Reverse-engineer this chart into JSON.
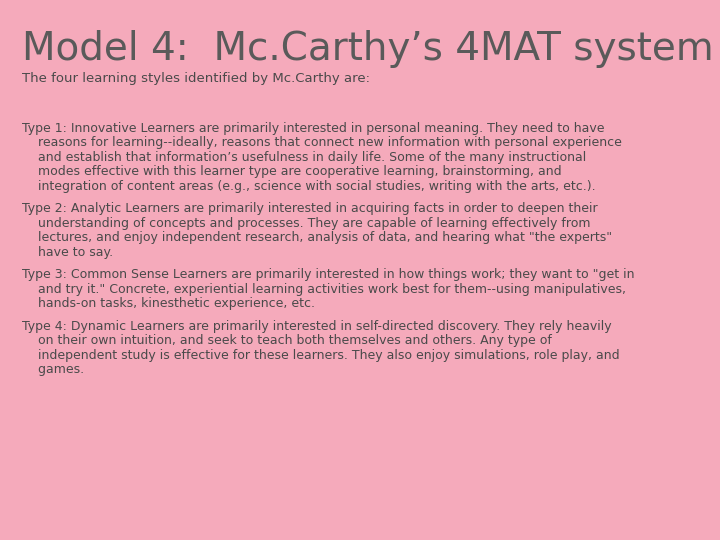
{
  "background_color": "#F5AABB",
  "title": "Model 4:  Mc.Carthy’s 4MAT system",
  "title_color": "#5a5a5a",
  "title_fontsize": 28,
  "subtitle": "The four learning styles identified by Mc.Carthy are:",
  "subtitle_color": "#4a4a4a",
  "subtitle_fontsize": 9.5,
  "text_color": "#4a4a4a",
  "body_fontsize": 9.0,
  "font_family": "Comic Sans MS",
  "paragraphs": [
    {
      "lines": [
        "Type 1: Innovative Learners are primarily interested in personal meaning. They need to have",
        "    reasons for learning--ideally, reasons that connect new information with personal experience",
        "    and establish that information’s usefulness in daily life. Some of the many instructional",
        "    modes effective with this learner type are cooperative learning, brainstorming, and",
        "    integration of content areas (e.g., science with social studies, writing with the arts, etc.)."
      ]
    },
    {
      "lines": [
        "Type 2: Analytic Learners are primarily interested in acquiring facts in order to deepen their",
        "    understanding of concepts and processes. They are capable of learning effectively from",
        "    lectures, and enjoy independent research, analysis of data, and hearing what \"the experts\"",
        "    have to say."
      ]
    },
    {
      "lines": [
        "Type 3: Common Sense Learners are primarily interested in how things work; they want to \"get in",
        "    and try it.\" Concrete, experiential learning activities work best for them--using manipulatives,",
        "    hands-on tasks, kinesthetic experience, etc."
      ]
    },
    {
      "lines": [
        "Type 4: Dynamic Learners are primarily interested in self-directed discovery. They rely heavily",
        "    on their own intuition, and seek to teach both themselves and others. Any type of",
        "    independent study is effective for these learners. They also enjoy simulations, role play, and",
        "    games."
      ]
    }
  ]
}
